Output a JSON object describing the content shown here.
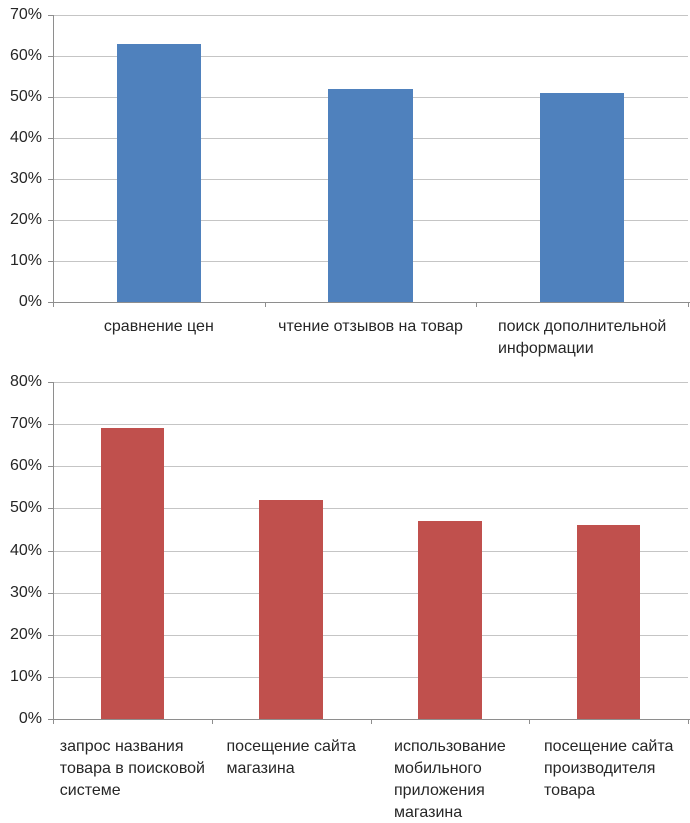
{
  "page": {
    "background": "#FFFFFF"
  },
  "style": {
    "grid_color": "#C5C5C5",
    "axis_color": "#8E8E8E",
    "text_color": "#262626",
    "blue_accent": "#4F81BD",
    "red_accent": "#C0504D"
  },
  "chart_data": [
    {
      "type": "bar",
      "categories": [
        "сравнение цен",
        "чтение отзывов на товар",
        "поиск дополнительной информации"
      ],
      "category_lines": [
        [
          "сравнение цен"
        ],
        [
          "чтение отзывов на товар"
        ],
        [
          "поиск дополнительной",
          "информации"
        ]
      ],
      "values": [
        63,
        52,
        51
      ],
      "bar_color": "#4F81BD",
      "yticks": [
        "0%",
        "10%",
        "20%",
        "30%",
        "40%",
        "50%",
        "60%",
        "70%"
      ],
      "ytick_values": [
        0,
        10,
        20,
        30,
        40,
        50,
        60,
        70
      ],
      "ylim": [
        0,
        70
      ],
      "grid": true,
      "legend": false
    },
    {
      "type": "bar",
      "categories": [
        "запрос названия товара в поисковой системе",
        "посещение сайта магазина",
        "использование мобильного приложения магазина",
        "посещение сайта производителя товара"
      ],
      "category_lines": [
        [
          "запрос названия",
          "товара в поисковой",
          "системе"
        ],
        [
          "посещение сайта",
          "магазина"
        ],
        [
          "использование",
          "мобильного",
          "приложения",
          "магазина"
        ],
        [
          "посещение сайта",
          "производителя",
          "товара"
        ]
      ],
      "values": [
        69,
        52,
        47,
        46
      ],
      "bar_color": "#C0504D",
      "yticks": [
        "0%",
        "10%",
        "20%",
        "30%",
        "40%",
        "50%",
        "60%",
        "70%",
        "80%"
      ],
      "ytick_values": [
        0,
        10,
        20,
        30,
        40,
        50,
        60,
        70,
        80
      ],
      "ylim": [
        0,
        80
      ],
      "grid": true,
      "legend": false
    }
  ]
}
